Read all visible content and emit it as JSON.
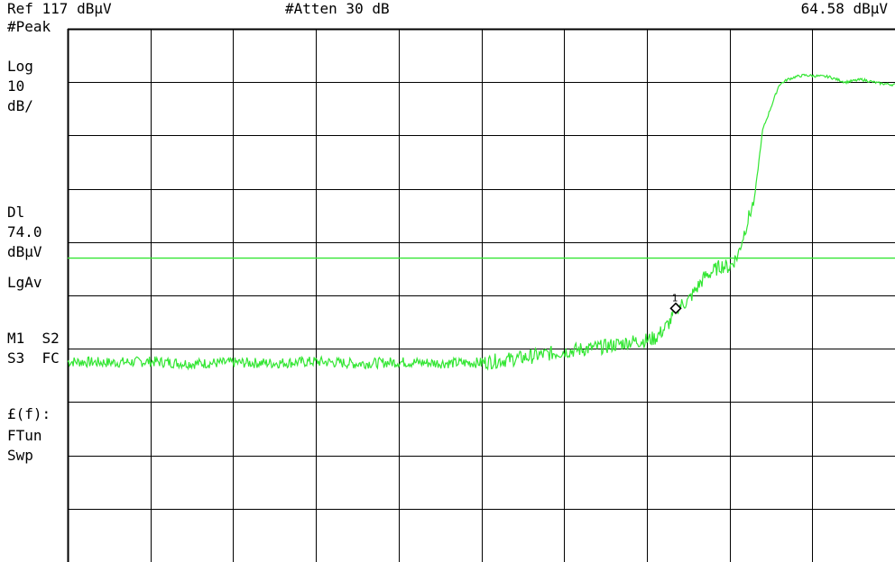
{
  "header": {
    "ref_level": "Ref 117 dBμV",
    "attenuation": "#Atten 30 dB",
    "marker_readout": "64.58 dBμV"
  },
  "sidebar": {
    "detector": "#Peak",
    "scale_type": "Log",
    "scale_value": "10",
    "scale_unit": "dB/",
    "display_line_label": "Dl",
    "display_line_value": "74.0",
    "display_line_unit": "dBμV",
    "averaging": "LgAv",
    "traces_row1": "M1  S2",
    "traces_row2": "S3  FC",
    "function_label": "£(f):",
    "function_mode": "FTun",
    "sweep": "Swp"
  },
  "chart_data": {
    "type": "line",
    "xlim": [
      0,
      10
    ],
    "ylim": [
      17,
      117
    ],
    "grid": true,
    "colors": {
      "trace": "#33e633",
      "display_line": "#33e633",
      "grid": "#000000"
    },
    "display_line": 74.0,
    "marker": {
      "label": "1",
      "x": 7.35,
      "y": 64.58
    },
    "series": [
      {
        "x": [
          0,
          0.5,
          1.0,
          1.5,
          2.0,
          2.5,
          3.0,
          3.5,
          4.0,
          4.5,
          5.0,
          5.5,
          6.0,
          6.5,
          6.8,
          7.0,
          7.1,
          7.2,
          7.3,
          7.35,
          7.5,
          7.7,
          7.9,
          8.0,
          8.1,
          8.2,
          8.3,
          8.4,
          8.6,
          8.7,
          8.8,
          8.9,
          9.0,
          9.2,
          9.4,
          9.6,
          9.8,
          10.0
        ],
        "y": [
          54.6,
          54.4,
          54.6,
          54.2,
          54.4,
          54.3,
          54.6,
          54.2,
          54.5,
          54.3,
          54.4,
          55.3,
          56.5,
          57.4,
          58.3,
          58.6,
          59.0,
          60.5,
          62.5,
          64.58,
          66.0,
          70.5,
          72.6,
          72.3,
          74.5,
          80.0,
          85.0,
          98.0,
          106.5,
          107.5,
          108.0,
          108.3,
          108.2,
          108.0,
          107.0,
          107.5,
          106.8,
          106.5
        ]
      }
    ]
  }
}
